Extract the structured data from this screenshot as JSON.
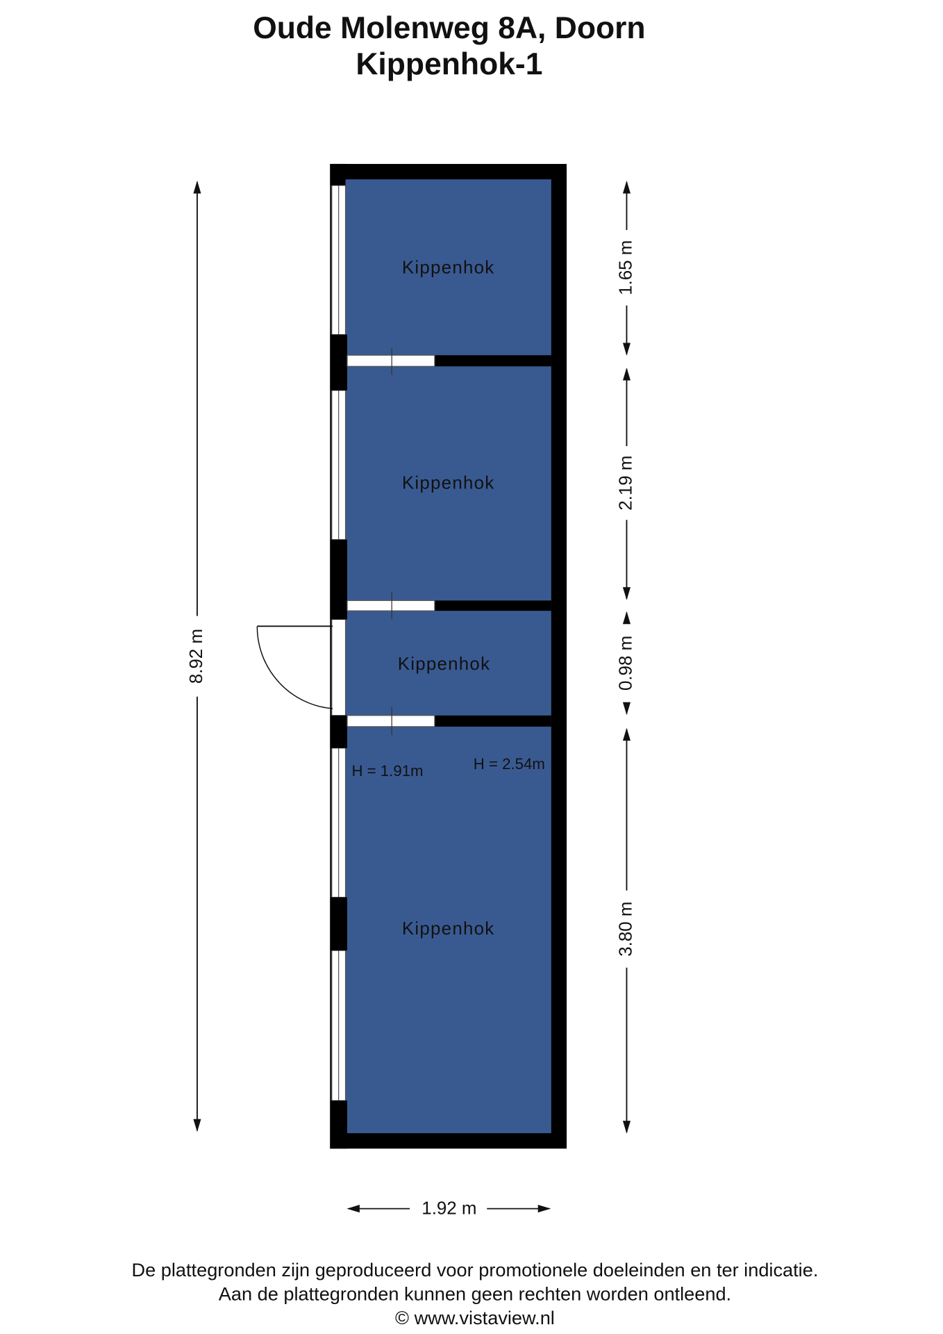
{
  "header": {
    "title": "Oude Molenweg 8A, Doorn",
    "subtitle": "Kippenhok-1"
  },
  "rooms": [
    {
      "label": "Kippenhok"
    },
    {
      "label": "Kippenhok"
    },
    {
      "label": "Kippenhok"
    },
    {
      "label": "Kippenhok"
    }
  ],
  "dimensions": {
    "total_length": "8.92 m",
    "width": "1.92 m",
    "room_lengths": [
      "1.65 m",
      "2.19 m",
      "0.98 m",
      "3.80 m"
    ]
  },
  "heights": [
    "H = 1.91m",
    "H = 2.54m"
  ],
  "footer": [
    "De plattegronden zijn geproduceerd voor promotionele doeleinden en ter indicatie.",
    "Aan de plattegronden kunnen geen rechten worden ontleend.",
    "© www.vistaview.nl"
  ]
}
